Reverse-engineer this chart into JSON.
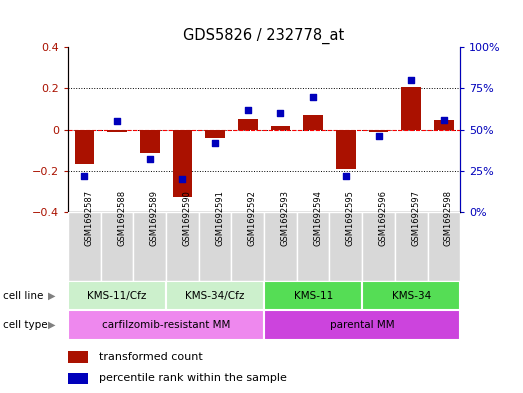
{
  "title": "GDS5826 / 232778_at",
  "samples": [
    "GSM1692587",
    "GSM1692588",
    "GSM1692589",
    "GSM1692590",
    "GSM1692591",
    "GSM1692592",
    "GSM1692593",
    "GSM1692594",
    "GSM1692595",
    "GSM1692596",
    "GSM1692597",
    "GSM1692598"
  ],
  "transformed_count": [
    -0.165,
    -0.01,
    -0.115,
    -0.325,
    -0.04,
    0.05,
    0.02,
    0.07,
    -0.19,
    -0.01,
    0.205,
    0.045
  ],
  "percentile_rank": [
    22,
    55,
    32,
    20,
    42,
    62,
    60,
    70,
    22,
    46,
    80,
    56
  ],
  "cell_line_groups": [
    {
      "label": "KMS-11/Cfz",
      "start": 0,
      "end": 3,
      "color": "#ccf0cc"
    },
    {
      "label": "KMS-34/Cfz",
      "start": 3,
      "end": 6,
      "color": "#ccf0cc"
    },
    {
      "label": "KMS-11",
      "start": 6,
      "end": 9,
      "color": "#55dd55"
    },
    {
      "label": "KMS-34",
      "start": 9,
      "end": 12,
      "color": "#55dd55"
    }
  ],
  "cell_type_groups": [
    {
      "label": "carfilzomib-resistant MM",
      "start": 0,
      "end": 6,
      "color": "#ee88ee"
    },
    {
      "label": "parental MM",
      "start": 6,
      "end": 12,
      "color": "#cc44dd"
    }
  ],
  "sample_box_color": "#d8d8d8",
  "bar_color": "#aa1100",
  "dot_color": "#0000bb",
  "left_ylim": [
    -0.4,
    0.4
  ],
  "right_ylim": [
    0,
    100
  ],
  "left_yticks": [
    -0.4,
    -0.2,
    0.0,
    0.2,
    0.4
  ],
  "right_yticks": [
    0,
    25,
    50,
    75,
    100
  ],
  "right_yticklabels": [
    "0%",
    "25%",
    "50%",
    "75%",
    "100%"
  ],
  "hlines_dotted": [
    -0.2,
    0.0,
    0.2
  ],
  "legend_tc": "transformed count",
  "legend_pr": "percentile rank within the sample"
}
